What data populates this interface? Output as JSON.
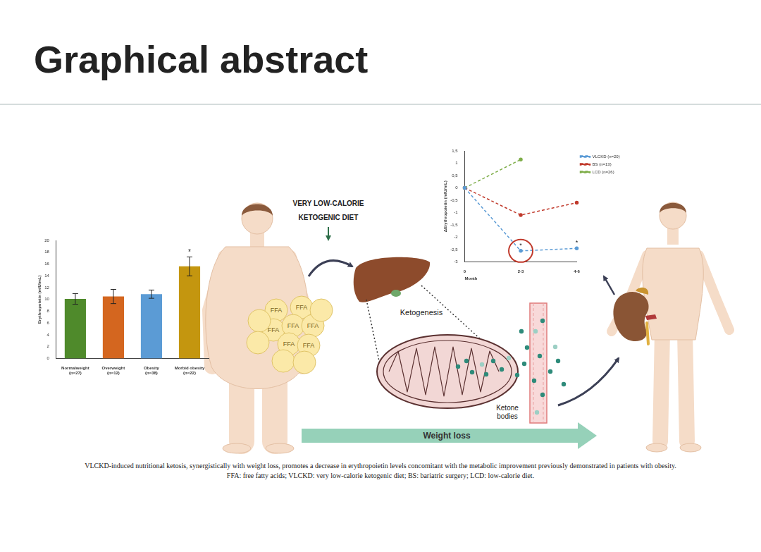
{
  "header": {
    "title": "Graphical abstract"
  },
  "diagram": {
    "intervention": [
      "VERY LOW-CALORIE",
      "KETOGENIC DIET"
    ],
    "fat_cells": [
      "FFA",
      "FFA",
      "FFA",
      "FFA",
      "FFA",
      "FFA",
      "FFA"
    ],
    "process": "Ketogenesis",
    "product": [
      "Ketone",
      "bodies"
    ],
    "outcome": "Weight loss"
  },
  "chart_data": [
    {
      "type": "bar",
      "y_label": "Erythropoietin (mIU/mL)",
      "categories": [
        [
          "Normalweight",
          "(n=27)"
        ],
        [
          "Overweight",
          "(n=12)"
        ],
        [
          "Obesity",
          "(n=38)"
        ],
        [
          "Morbid obesity",
          "(n=22)"
        ]
      ],
      "values": [
        10.1,
        10.5,
        10.9,
        15.6
      ],
      "errors": [
        0.9,
        1.2,
        0.7,
        1.6
      ],
      "colors": [
        "#4f8a2b",
        "#d4661f",
        "#5b9bd5",
        "#c4960f"
      ],
      "ylim": [
        0,
        20
      ],
      "yticks": [
        0,
        2,
        4,
        6,
        8,
        10,
        12,
        14,
        16,
        18,
        20
      ],
      "grid": false,
      "annotations": [
        {
          "category": [
            "Morbid obesity",
            "(n=22)"
          ],
          "text": "*"
        }
      ]
    },
    {
      "type": "line",
      "y_label": "ΔErythropoietin (mIU/mL)",
      "x_label": "Month",
      "categories": [
        "0",
        "2-3",
        "4-6"
      ],
      "series": [
        {
          "name": "VLCKD (n=20)",
          "color": "#5b9bd5",
          "values": [
            0,
            -2.55,
            -2.45
          ],
          "line_style": "dashed",
          "marker": "circle"
        },
        {
          "name": "BS (n=13)",
          "color": "#c0392b",
          "values": [
            0,
            -1.1,
            -0.6
          ],
          "line_style": "dashed",
          "marker": "circle"
        },
        {
          "name": "LCD (n=26)",
          "color": "#7fae4a",
          "values": [
            0,
            1.15,
            null
          ],
          "line_style": "dashed",
          "marker": "circle"
        }
      ],
      "ylim": [
        -3,
        1.5
      ],
      "yticks": [
        {
          "value": 1.5,
          "label": "1,5"
        },
        1,
        {
          "value": 0.5,
          "label": "0,5"
        },
        0,
        {
          "value": -0.5,
          "label": "-0,5"
        },
        -1,
        {
          "value": -1.5,
          "label": "-1,5"
        },
        -2,
        {
          "value": -2.5,
          "label": "-2,5"
        },
        -3
      ],
      "grid": false,
      "legend": "right",
      "annotations": [
        {
          "series": "VLCKD (n=20)",
          "category": "2-3",
          "text": "*"
        },
        {
          "series": "VLCKD (n=20)",
          "category": "4-6",
          "text": "*"
        }
      ]
    }
  ],
  "caption": [
    "VLCKD-induced nutritional ketosis, synergistically with weight loss, promotes a decrease in erythropoietin levels concomitant with the metabolic improvement previously demonstrated in patients with obesity.",
    "FFA: free fatty acids; VLCKD: very low-calorie ketogenic diet; BS: bariatric surgery; LCD: low-calorie diet."
  ]
}
